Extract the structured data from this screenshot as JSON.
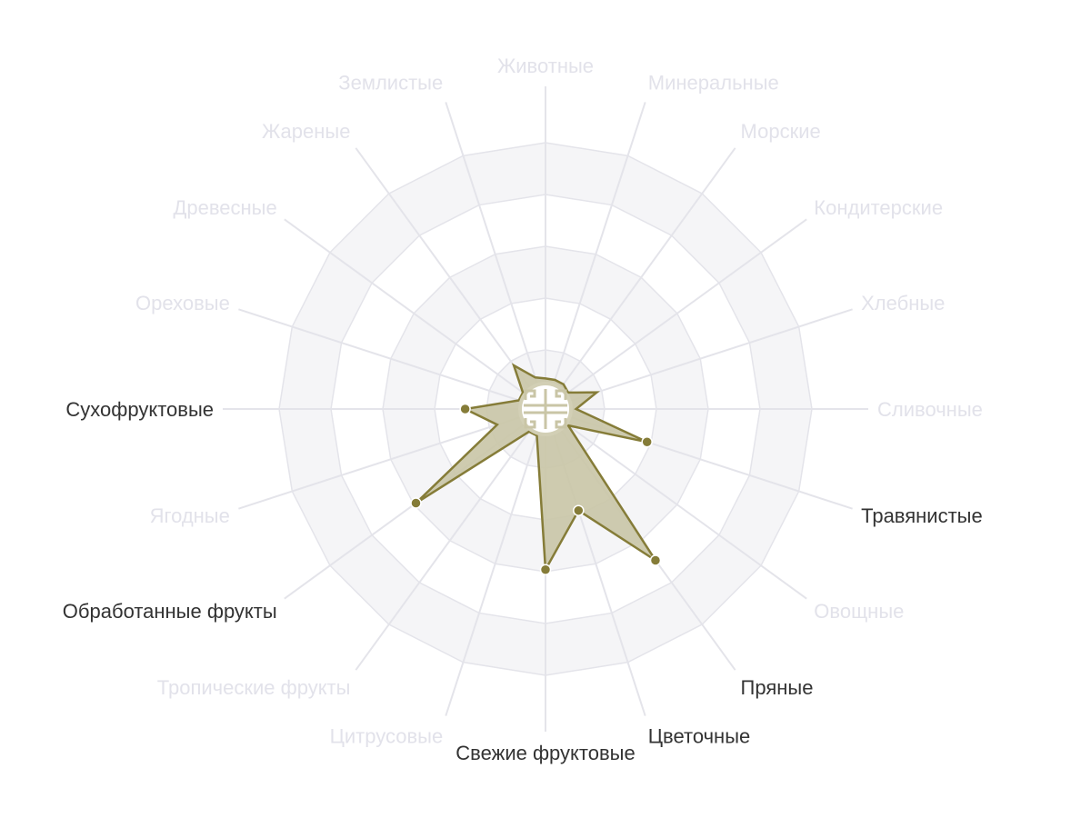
{
  "chart_data": {
    "type": "radar",
    "title": "",
    "categories": [
      "Животные",
      "Минеральные",
      "Морские",
      "Кондитерские",
      "Хлебные",
      "Сливочные",
      "Травянистые",
      "Овощные",
      "Пряные",
      "Цветочные",
      "Свежие фруктовые",
      "Цитрусовые",
      "Тропические фрукты",
      "Обработанные фрукты",
      "Ягодные",
      "Сухофруктовые",
      "Ореховые",
      "Древесные",
      "Жареные",
      "Землистые"
    ],
    "values": [
      0.45,
      0.45,
      0.45,
      0.4,
      0.9,
      0.45,
      1.92,
      0.4,
      3.47,
      1.92,
      2.96,
      0.4,
      0.4,
      2.95,
      0.84,
      1.41,
      0.4,
      0.4,
      0.9,
      0.5
    ],
    "highlighted": [
      "Травянистые",
      "Пряные",
      "Цветочные",
      "Свежие фруктовые",
      "Обработанные фрукты",
      "Сухофруктовые"
    ],
    "rlim": [
      0,
      5
    ],
    "rings": [
      1,
      2,
      3,
      4,
      5
    ],
    "grid": true,
    "colors": {
      "series_line": "#857c38",
      "series_fill": "#c9c5a6",
      "label_active": "#333333",
      "label_inactive": "#e2e2ea",
      "grid_line": "#e4e4ea",
      "band": "#f5f5f7"
    },
    "center_icon": "shou-longevity-symbol-icon"
  }
}
